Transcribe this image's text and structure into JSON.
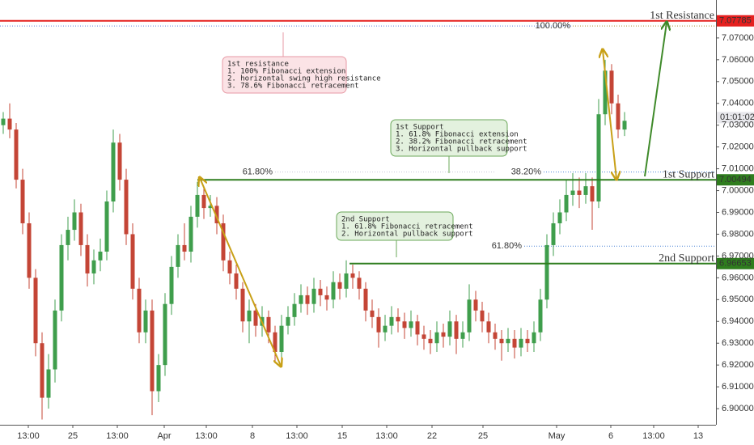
{
  "chart_data": {
    "type": "candlestick",
    "up_color": "#3f9e4c",
    "down_color": "#c44536",
    "grid": false,
    "xlim": [
      -0.5,
      110.125
    ],
    "ylim": [
      6.8926,
      7.0874
    ],
    "xticks": [
      {
        "value": 3.875,
        "label": "13:00"
      },
      {
        "value": 10.75,
        "label": "25"
      },
      {
        "value": 17.625,
        "label": "13:00"
      },
      {
        "value": 24.875,
        "label": "Apr"
      },
      {
        "value": 31.375,
        "label": "13:00"
      },
      {
        "value": 38.5,
        "label": "8"
      },
      {
        "value": 45.375,
        "label": "13:00"
      },
      {
        "value": 52.375,
        "label": "15"
      },
      {
        "value": 59.25,
        "label": "13:00"
      },
      {
        "value": 66.25,
        "label": "22"
      },
      {
        "value": 74.125,
        "label": "25"
      },
      {
        "value": 85.5,
        "label": "May"
      },
      {
        "value": 93.875,
        "label": "6"
      },
      {
        "value": 100.5,
        "label": "13:00"
      },
      {
        "value": 107.375,
        "label": "13"
      }
    ],
    "yticks": [
      {
        "value": 6.9,
        "label": "6.90000"
      },
      {
        "value": 6.91,
        "label": "6.91000"
      },
      {
        "value": 6.92,
        "label": "6.92000"
      },
      {
        "value": 6.93,
        "label": "6.93000"
      },
      {
        "value": 6.94,
        "label": "6.94000"
      },
      {
        "value": 6.95,
        "label": "6.95000"
      },
      {
        "value": 6.96,
        "label": "6.96000"
      },
      {
        "value": 6.97,
        "label": "6.97000"
      },
      {
        "value": 6.98,
        "label": "6.98000"
      },
      {
        "value": 6.99,
        "label": "6.99000"
      },
      {
        "value": 7.0,
        "label": "7.00000"
      },
      {
        "value": 7.01,
        "label": "7.01000"
      },
      {
        "value": 7.02,
        "label": "7.02000"
      },
      {
        "value": 7.03,
        "label": "7.03000"
      },
      {
        "value": 7.04,
        "label": "7.04000"
      },
      {
        "value": 7.05,
        "label": "7.05000"
      },
      {
        "value": 7.06,
        "label": "7.06000"
      },
      {
        "value": 7.07,
        "label": "7.07000"
      }
    ],
    "candles": [
      [
        7.03,
        7.036,
        7.026,
        7.033
      ],
      [
        7.033,
        7.04,
        7.024,
        7.028
      ],
      [
        7.028,
        7.031,
        7.001,
        7.005
      ],
      [
        7.005,
        7.01,
        6.98,
        6.985
      ],
      [
        6.985,
        6.99,
        6.955,
        6.96
      ],
      [
        6.96,
        6.964,
        6.924,
        6.93
      ],
      [
        6.93,
        6.935,
        6.895,
        6.905
      ],
      [
        6.905,
        6.925,
        6.9,
        6.918
      ],
      [
        6.918,
        6.95,
        6.912,
        6.945
      ],
      [
        6.945,
        6.98,
        6.94,
        6.975
      ],
      [
        6.975,
        6.988,
        6.968,
        6.982
      ],
      [
        6.982,
        6.996,
        6.977,
        6.99
      ],
      [
        6.99,
        6.994,
        6.97,
        6.975
      ],
      [
        6.975,
        6.98,
        6.956,
        6.962
      ],
      [
        6.962,
        6.973,
        6.957,
        6.968
      ],
      [
        6.968,
        6.978,
        6.963,
        6.972
      ],
      [
        6.972,
        7.0,
        6.968,
        6.995
      ],
      [
        6.995,
        7.028,
        6.99,
        7.022
      ],
      [
        7.022,
        7.026,
        7.0,
        7.005
      ],
      [
        7.005,
        7.01,
        6.975,
        6.98
      ],
      [
        6.98,
        6.985,
        6.95,
        6.955
      ],
      [
        6.955,
        6.96,
        6.93,
        6.935
      ],
      [
        6.935,
        6.95,
        6.93,
        6.945
      ],
      [
        6.945,
        6.95,
        6.897,
        6.908
      ],
      [
        6.908,
        6.925,
        6.903,
        6.92
      ],
      [
        6.92,
        6.953,
        6.915,
        6.948
      ],
      [
        6.948,
        6.97,
        6.943,
        6.965
      ],
      [
        6.965,
        6.98,
        6.96,
        6.975
      ],
      [
        6.975,
        6.985,
        6.968,
        6.972
      ],
      [
        6.972,
        6.993,
        6.967,
        6.988
      ],
      [
        6.988,
        7.004,
        6.983,
        6.998
      ],
      [
        6.998,
        7.002,
        6.987,
        6.992
      ],
      [
        6.992,
        6.998,
        6.988,
        6.993
      ],
      [
        6.993,
        6.997,
        6.98,
        6.985
      ],
      [
        6.985,
        6.989,
        6.963,
        6.968
      ],
      [
        6.968,
        6.972,
        6.957,
        6.962
      ],
      [
        6.962,
        6.966,
        6.95,
        6.955
      ],
      [
        6.955,
        6.958,
        6.935,
        6.94
      ],
      [
        6.94,
        6.95,
        6.93,
        6.945
      ],
      [
        6.945,
        6.948,
        6.933,
        6.938
      ],
      [
        6.938,
        6.947,
        6.933,
        6.942
      ],
      [
        6.942,
        6.945,
        6.93,
        6.935
      ],
      [
        6.935,
        6.938,
        6.921,
        6.926
      ],
      [
        6.926,
        6.943,
        6.922,
        6.938
      ],
      [
        6.938,
        6.947,
        6.934,
        6.942
      ],
      [
        6.942,
        6.953,
        6.938,
        6.948
      ],
      [
        6.948,
        6.957,
        6.944,
        6.952
      ],
      [
        6.952,
        6.956,
        6.943,
        6.948
      ],
      [
        6.948,
        6.96,
        6.944,
        6.955
      ],
      [
        6.955,
        6.959,
        6.947,
        6.952
      ],
      [
        6.952,
        6.956,
        6.945,
        6.95
      ],
      [
        6.95,
        6.963,
        6.946,
        6.958
      ],
      [
        6.958,
        6.962,
        6.95,
        6.955
      ],
      [
        6.955,
        6.968,
        6.951,
        6.962
      ],
      [
        6.962,
        6.966,
        6.955,
        6.96
      ],
      [
        6.96,
        6.963,
        6.95,
        6.955
      ],
      [
        6.955,
        6.958,
        6.94,
        6.945
      ],
      [
        6.945,
        6.95,
        6.937,
        6.942
      ],
      [
        6.942,
        6.946,
        6.928,
        6.935
      ],
      [
        6.935,
        6.943,
        6.931,
        6.938
      ],
      [
        6.938,
        6.947,
        6.934,
        6.942
      ],
      [
        6.942,
        6.946,
        6.935,
        6.94
      ],
      [
        6.94,
        6.944,
        6.932,
        6.937
      ],
      [
        6.937,
        6.945,
        6.933,
        6.94
      ],
      [
        6.94,
        6.943,
        6.929,
        6.934
      ],
      [
        6.934,
        6.938,
        6.927,
        6.932
      ],
      [
        6.932,
        6.936,
        6.925,
        6.93
      ],
      [
        6.93,
        6.94,
        6.926,
        6.935
      ],
      [
        6.935,
        6.939,
        6.928,
        6.933
      ],
      [
        6.933,
        6.945,
        6.929,
        6.94
      ],
      [
        6.94,
        6.943,
        6.925,
        6.932
      ],
      [
        6.932,
        6.94,
        6.928,
        6.935
      ],
      [
        6.935,
        6.957,
        6.931,
        6.95
      ],
      [
        6.95,
        6.954,
        6.94,
        6.945
      ],
      [
        6.945,
        6.949,
        6.935,
        6.94
      ],
      [
        6.94,
        6.944,
        6.93,
        6.935
      ],
      [
        6.935,
        6.939,
        6.927,
        6.932
      ],
      [
        6.932,
        6.936,
        6.922,
        6.93
      ],
      [
        6.93,
        6.937,
        6.926,
        6.932
      ],
      [
        6.932,
        6.936,
        6.923,
        6.928
      ],
      [
        6.928,
        6.937,
        6.924,
        6.932
      ],
      [
        6.932,
        6.936,
        6.926,
        6.93
      ],
      [
        6.93,
        6.94,
        6.926,
        6.935
      ],
      [
        6.935,
        6.955,
        6.931,
        6.95
      ],
      [
        6.95,
        6.98,
        6.946,
        6.975
      ],
      [
        6.975,
        6.99,
        6.97,
        6.985
      ],
      [
        6.985,
        6.996,
        6.98,
        6.99
      ],
      [
        6.99,
        7.005,
        6.986,
        6.998
      ],
      [
        6.998,
        7.008,
        6.993,
        7.0
      ],
      [
        7.0,
        7.006,
        6.992,
        6.998
      ],
      [
        6.998,
        7.008,
        6.994,
        7.002
      ],
      [
        7.002,
        7.006,
        6.982,
        6.995
      ],
      [
        6.995,
        7.042,
        6.992,
        7.035
      ],
      [
        7.035,
        7.06,
        7.03,
        7.055
      ],
      [
        7.055,
        7.058,
        7.035,
        7.04
      ],
      [
        7.04,
        7.044,
        7.024,
        7.028
      ],
      [
        7.028,
        7.036,
        7.025,
        7.032
      ]
    ],
    "levels": [
      {
        "name": "1st Resistance",
        "value": 7.07785,
        "color": "#e5201f",
        "start": -0.5
      },
      {
        "name": "1st Support",
        "value": 7.00494,
        "color": "#2f7d1e",
        "start": 30
      },
      {
        "name": "2nd Support",
        "value": 6.96653,
        "color": "#2f7d1e",
        "start": 53.5
      }
    ],
    "guide_level": {
      "value": 7.0755,
      "color": "#5b7fd6"
    },
    "fib_levels": [
      {
        "label": "100.00%",
        "value": 7.0755,
        "start": 88,
        "color": "#c8a23a"
      },
      {
        "label": "38.20%",
        "value": 7.0085,
        "start": 83.5,
        "color": "#4a84d6"
      },
      {
        "label": "61.80%",
        "value": 6.9745,
        "start": 80.5,
        "color": "#4a84d6"
      },
      {
        "label": "61.80%",
        "value": 7.0085,
        "start": 42,
        "color": "#c8c8d8"
      }
    ],
    "countdown": "01:01:02",
    "annotations": [
      {
        "lines": [
          "1st resistance",
          "1. 100% Fibonacci extension",
          "2. horizontal swing high resistance",
          "3. 78.6% Fibonacci retracement"
        ],
        "fill": "#fbe3e6",
        "stroke": "#e79aa5"
      },
      {
        "lines": [
          "1st Support",
          "1. 61.8% Fibonacci extension",
          "2. 38.2% Fibonacci retracement",
          "3. Horizontal pullback support"
        ],
        "fill": "#e3f1de",
        "stroke": "#6ba85a"
      },
      {
        "lines": [
          "2nd Support",
          "1. 61.8% Fibonacci retracement",
          "2. Horizontal pullback support"
        ],
        "fill": "#e3f1de",
        "stroke": "#6ba85a"
      }
    ]
  }
}
